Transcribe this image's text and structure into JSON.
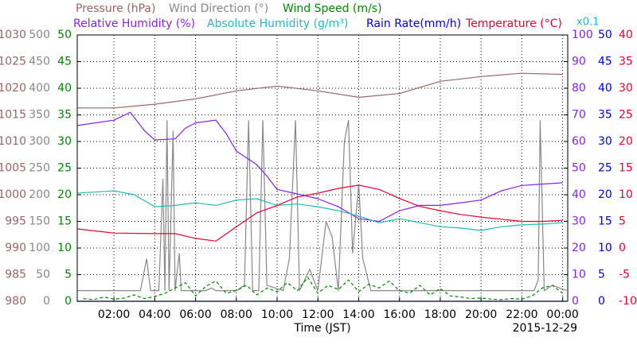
{
  "chart_data": {
    "type": "line",
    "x_label": "Time (JST)",
    "date": "2015-12-29",
    "scale_note": "x0.1",
    "scale_note_color": "#22bbbb",
    "xlim": [
      0.2,
      24.25
    ],
    "xticks": [
      {
        "value": 2,
        "label": "02:00"
      },
      {
        "value": 4,
        "label": "04:00"
      },
      {
        "value": 6,
        "label": "06:00"
      },
      {
        "value": 8,
        "label": "08:00"
      },
      {
        "value": 10,
        "label": "10:00"
      },
      {
        "value": 12,
        "label": "12:00"
      },
      {
        "value": 14,
        "label": "14:00"
      },
      {
        "value": 16,
        "label": "16:00"
      },
      {
        "value": 18,
        "label": "18:00"
      },
      {
        "value": 20,
        "label": "20:00"
      },
      {
        "value": 22,
        "label": "22:00"
      },
      {
        "value": 24,
        "label": "00:00"
      }
    ],
    "grid": true,
    "series": [
      {
        "name": "Pressure (hPa)",
        "color": "#996666",
        "side": "left",
        "ylim": [
          980,
          1030
        ],
        "yticks": [
          980,
          985,
          990,
          995,
          1000,
          1005,
          1010,
          1015,
          1020,
          1025,
          1030
        ],
        "x": [
          0.2,
          2,
          4,
          6,
          8,
          10,
          12,
          14,
          16,
          18,
          20,
          22,
          24
        ],
        "values": [
          1016.3,
          1016.3,
          1017,
          1018,
          1019.5,
          1020.4,
          1019.5,
          1018.3,
          1019,
          1021.3,
          1022.2,
          1022.8,
          1022.6
        ]
      },
      {
        "name": "Wind Direction (°)",
        "color": "#888888",
        "side": "left",
        "ylim": [
          0,
          500
        ],
        "yticks": [
          0,
          50,
          100,
          150,
          200,
          250,
          300,
          350,
          400,
          450,
          500
        ],
        "x": [
          0.2,
          3.3,
          3.6,
          3.8,
          4.2,
          4.4,
          4.5,
          4.6,
          4.7,
          4.9,
          5.0,
          5.2,
          5.3,
          5.6,
          6.5,
          6.8,
          7.0,
          8.0,
          8.4,
          8.6,
          8.8,
          9.1,
          9.3,
          9.5,
          10.3,
          10.6,
          10.9,
          11.1,
          11.6,
          12.0,
          12.4,
          12.7,
          13.0,
          13.3,
          13.5,
          13.7,
          14.0,
          14.2,
          14.6,
          15.4,
          16.8,
          22.6,
          22.8,
          22.9,
          23.1,
          23.5,
          24.2
        ],
        "values": [
          20,
          20,
          80,
          20,
          20,
          230,
          20,
          340,
          20,
          320,
          20,
          90,
          20,
          20,
          20,
          25,
          20,
          20,
          30,
          340,
          20,
          20,
          340,
          30,
          20,
          80,
          340,
          20,
          60,
          20,
          150,
          120,
          20,
          300,
          340,
          90,
          220,
          80,
          20,
          20,
          20,
          20,
          40,
          340,
          20,
          30,
          20
        ]
      },
      {
        "name": "Wind Speed (m/s)",
        "color": "#008800",
        "side": "left",
        "dashed": true,
        "ylim": [
          0,
          50
        ],
        "yticks": [
          0,
          5,
          10,
          15,
          20,
          25,
          30,
          35,
          40,
          45,
          50
        ],
        "x": [
          0.5,
          1,
          1.5,
          2,
          2.5,
          3,
          3.5,
          4,
          4.5,
          5,
          5.5,
          6,
          6.5,
          7,
          7.5,
          8,
          8.5,
          9,
          9.5,
          10,
          10.5,
          11,
          11.5,
          12,
          12.5,
          13,
          13.5,
          14,
          14.5,
          15,
          15.5,
          16,
          16.5,
          17,
          17.5,
          18,
          18.5,
          19,
          19.5,
          20,
          20.5,
          21,
          21.5,
          22,
          22.5,
          23,
          23.5,
          24
        ],
        "values": [
          0.5,
          0.3,
          0.8,
          0.4,
          0.6,
          1.2,
          0.5,
          0.9,
          1.5,
          2.5,
          3.5,
          1.0,
          2.8,
          3.8,
          1.5,
          2.0,
          3.0,
          1.2,
          2.5,
          1.8,
          3.5,
          2.0,
          4.5,
          1.5,
          3.0,
          2.2,
          4.0,
          1.8,
          3.2,
          2.5,
          3.8,
          2.0,
          1.5,
          3.0,
          1.2,
          2.4,
          1.0,
          0.8,
          0.5,
          0.6,
          0.4,
          0.3,
          0.5,
          0.4,
          1.0,
          2.5,
          3.0,
          1.5
        ]
      },
      {
        "name": "Relative Humidity (%)",
        "color": "#8822ee",
        "side": "right",
        "ylim": [
          0,
          100
        ],
        "yticks": [
          0,
          10,
          20,
          30,
          40,
          50,
          60,
          70,
          80,
          90,
          100
        ],
        "x": [
          0.2,
          2,
          2.8,
          3.5,
          4,
          5,
          5.5,
          6,
          7,
          7.5,
          8,
          9,
          9.5,
          10,
          11,
          12,
          13,
          14,
          15,
          16,
          17,
          18,
          19,
          20,
          21,
          22,
          23,
          24
        ],
        "values": [
          66,
          68,
          71,
          64,
          60.6,
          61,
          65,
          67,
          68,
          63,
          56.4,
          51.3,
          47,
          42,
          40.3,
          38.5,
          35.5,
          31,
          30,
          34,
          36,
          36,
          37,
          38,
          41.5,
          43.5,
          44,
          44.5
        ]
      },
      {
        "name": "Absolute Humidity (g/m³)",
        "color": "#22bbbb",
        "axis": "Relative Humidity (%)",
        "x": [
          0.2,
          1,
          2,
          3,
          4,
          5,
          6,
          7,
          8,
          9,
          10,
          11,
          12,
          13,
          14,
          15,
          16,
          17,
          18,
          19,
          20,
          21,
          22,
          23,
          24
        ],
        "values": [
          40.6,
          41,
          41.5,
          40,
          35.5,
          36,
          37,
          36,
          38,
          38.5,
          36,
          36.5,
          35.5,
          34,
          32,
          29.5,
          31,
          29.5,
          28,
          27.5,
          26.6,
          28,
          28.7,
          29,
          29.5
        ]
      },
      {
        "name": "Rain Rate(mm/h)",
        "color": "#0000ee",
        "side": "right",
        "ylim": [
          0,
          50
        ],
        "yticks": [
          0,
          5,
          10,
          15,
          20,
          25,
          30,
          35,
          40,
          45,
          50
        ],
        "x": [
          0.2,
          24.2
        ],
        "values": [
          0,
          0
        ]
      },
      {
        "name": "Temperature (°C)",
        "color": "#ee0033",
        "side": "right",
        "ylim": [
          -10,
          40
        ],
        "yticks": [
          -10,
          -5,
          0,
          5,
          10,
          15,
          20,
          25,
          30,
          35,
          40
        ],
        "x": [
          0.2,
          2,
          4,
          5,
          6,
          7,
          8,
          9,
          10,
          11,
          12,
          13,
          14,
          15,
          16,
          17,
          18,
          19,
          20,
          21,
          22,
          23,
          24
        ],
        "values": [
          3.6,
          2.8,
          2.7,
          2.7,
          1.8,
          1.3,
          4,
          6.6,
          8,
          9.6,
          10.3,
          11.2,
          11.8,
          11,
          9.3,
          7.8,
          7,
          6.3,
          5.8,
          5.4,
          5,
          5,
          5.2
        ]
      }
    ]
  }
}
